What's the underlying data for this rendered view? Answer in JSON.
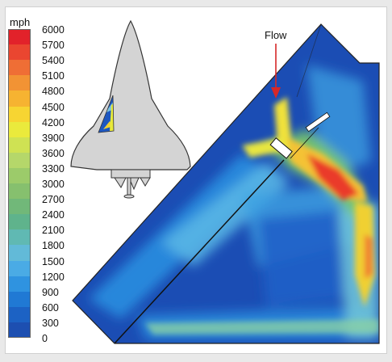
{
  "legend": {
    "unit": "mph",
    "ticks": [
      "6000",
      "5700",
      "5400",
      "5100",
      "4800",
      "4500",
      "4200",
      "3900",
      "3600",
      "3300",
      "3000",
      "2700",
      "2400",
      "2100",
      "1800",
      "1500",
      "1200",
      "900",
      "600",
      "300",
      "0"
    ],
    "colors": [
      "#e2222a",
      "#ea4630",
      "#ef6e35",
      "#f29334",
      "#f6b331",
      "#f7d532",
      "#eaea3c",
      "#cfe253",
      "#b5d76a",
      "#9ccb6a",
      "#86c06e",
      "#71b879",
      "#5fb38c",
      "#60b9b3",
      "#62bad8",
      "#4aabe5",
      "#2f93e0",
      "#2079d4",
      "#1c62c4",
      "#1d4fb1"
    ]
  },
  "annotation": {
    "flow_label": "Flow"
  }
}
